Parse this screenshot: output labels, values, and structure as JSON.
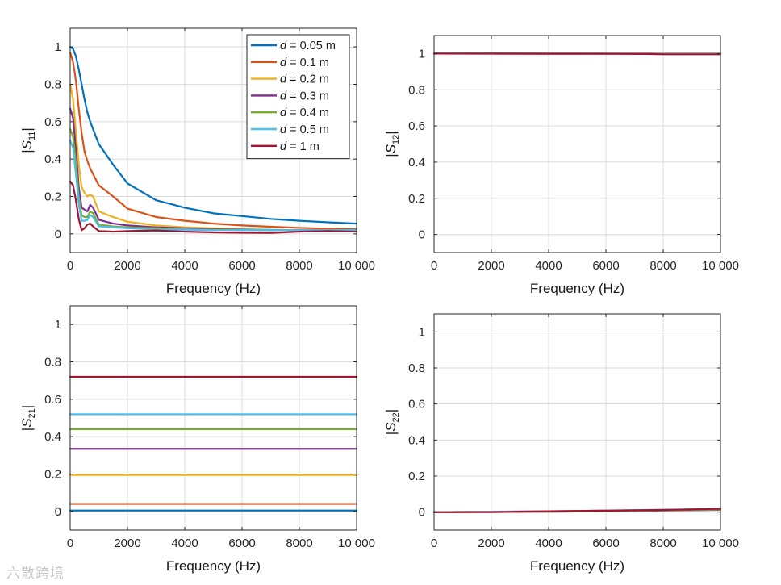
{
  "watermark": "六散跨境",
  "chart_data": [
    {
      "id": "s11",
      "type": "line",
      "ylabel_main": "S",
      "ylabel_sub": "11",
      "xlabel": "Frequency (Hz)",
      "xlim": [
        0,
        10000
      ],
      "ylim": [
        -0.1,
        1.1
      ],
      "xticks": [
        0,
        2000,
        4000,
        6000,
        8000,
        10000
      ],
      "xtick_labels": [
        "0",
        "2000",
        "4000",
        "6000",
        "8000",
        "10 000"
      ],
      "yticks": [
        0,
        0.2,
        0.4,
        0.6,
        0.8,
        1
      ],
      "ytick_labels": [
        "0",
        "0.2",
        "0.4",
        "0.6",
        "0.8",
        "1"
      ],
      "grid": true,
      "legend": "top-right",
      "series": [
        {
          "name": "d = 0.05 m",
          "var": "d",
          "rest": " = 0.05 m",
          "color": "#0072BD",
          "x": [
            0,
            100,
            200,
            300,
            400,
            500,
            600,
            700,
            800,
            1000,
            1500,
            2000,
            3000,
            4000,
            5000,
            6000,
            7000,
            8000,
            9000,
            10000
          ],
          "y": [
            1.0,
            0.99,
            0.95,
            0.88,
            0.8,
            0.72,
            0.65,
            0.6,
            0.56,
            0.48,
            0.37,
            0.27,
            0.18,
            0.14,
            0.11,
            0.095,
            0.08,
            0.07,
            0.062,
            0.055
          ]
        },
        {
          "name": "d = 0.1 m",
          "var": "d",
          "rest": " = 0.1 m",
          "color": "#D95319",
          "x": [
            0,
            100,
            200,
            300,
            400,
            500,
            600,
            700,
            800,
            1000,
            1500,
            2000,
            3000,
            4000,
            5000,
            6000,
            7000,
            8000,
            9000,
            10000
          ],
          "y": [
            0.97,
            0.92,
            0.82,
            0.67,
            0.54,
            0.44,
            0.39,
            0.35,
            0.32,
            0.26,
            0.2,
            0.135,
            0.09,
            0.07,
            0.055,
            0.045,
            0.038,
            0.032,
            0.028,
            0.025
          ]
        },
        {
          "name": "d = 0.2 m",
          "var": "d",
          "rest": " = 0.2 m",
          "color": "#EDB120",
          "x": [
            0,
            100,
            200,
            300,
            400,
            500,
            600,
            700,
            800,
            1000,
            1500,
            2000,
            3000,
            4000,
            5000,
            6000,
            7000,
            8000,
            9000,
            10000
          ],
          "y": [
            0.8,
            0.72,
            0.55,
            0.37,
            0.25,
            0.22,
            0.2,
            0.21,
            0.2,
            0.12,
            0.09,
            0.065,
            0.045,
            0.035,
            0.03,
            0.025,
            0.022,
            0.02,
            0.02,
            0.02
          ]
        },
        {
          "name": "d = 0.3 m",
          "var": "d",
          "rest": " = 0.3 m",
          "color": "#7E2F8E",
          "x": [
            0,
            100,
            200,
            300,
            400,
            500,
            600,
            700,
            800,
            1000,
            1500,
            2000,
            3000,
            4000,
            5000,
            6000,
            7000,
            8000,
            9000,
            10000
          ],
          "y": [
            0.67,
            0.62,
            0.45,
            0.25,
            0.14,
            0.13,
            0.12,
            0.155,
            0.14,
            0.075,
            0.055,
            0.045,
            0.035,
            0.03,
            0.025,
            0.022,
            0.02,
            0.02,
            0.02,
            0.02
          ]
        },
        {
          "name": "d = 0.4 m",
          "var": "d",
          "rest": " = 0.4 m",
          "color": "#77AC30",
          "x": [
            0,
            100,
            200,
            300,
            400,
            500,
            600,
            700,
            800,
            1000,
            1500,
            2000,
            3000,
            4000,
            5000,
            6000,
            7000,
            8000,
            9000,
            10000
          ],
          "y": [
            0.56,
            0.52,
            0.38,
            0.2,
            0.1,
            0.09,
            0.09,
            0.12,
            0.11,
            0.05,
            0.04,
            0.035,
            0.03,
            0.025,
            0.022,
            0.02,
            0.02,
            0.02,
            0.02,
            0.02
          ]
        },
        {
          "name": "d = 0.5 m",
          "var": "d",
          "rest": " = 0.5 m",
          "color": "#4DBEEE",
          "x": [
            0,
            100,
            200,
            300,
            400,
            500,
            600,
            700,
            800,
            1000,
            1500,
            2000,
            3000,
            4000,
            5000,
            6000,
            7000,
            8000,
            9000,
            10000
          ],
          "y": [
            0.5,
            0.46,
            0.32,
            0.16,
            0.07,
            0.07,
            0.075,
            0.1,
            0.09,
            0.04,
            0.035,
            0.03,
            0.025,
            0.022,
            0.02,
            0.02,
            0.02,
            0.02,
            0.02,
            0.02
          ]
        },
        {
          "name": "d = 1 m",
          "var": "d",
          "rest": " = 1 m",
          "color": "#A2142F",
          "x": [
            0,
            100,
            200,
            300,
            400,
            500,
            600,
            700,
            800,
            1000,
            1500,
            2000,
            3000,
            4000,
            5000,
            6000,
            7000,
            8000,
            9000,
            10000
          ],
          "y": [
            0.28,
            0.26,
            0.18,
            0.08,
            0.02,
            0.03,
            0.05,
            0.055,
            0.04,
            0.015,
            0.012,
            0.015,
            0.018,
            0.012,
            0.008,
            0.006,
            0.005,
            0.012,
            0.015,
            0.012
          ]
        }
      ]
    },
    {
      "id": "s12",
      "type": "line",
      "ylabel_main": "S",
      "ylabel_sub": "12",
      "xlabel": "Frequency (Hz)",
      "xlim": [
        0,
        10000
      ],
      "ylim": [
        -0.1,
        1.1
      ],
      "xticks": [
        0,
        2000,
        4000,
        6000,
        8000,
        10000
      ],
      "xtick_labels": [
        "0",
        "2000",
        "4000",
        "6000",
        "8000",
        "10 000"
      ],
      "yticks": [
        0,
        0.2,
        0.4,
        0.6,
        0.8,
        1
      ],
      "ytick_labels": [
        "0",
        "0.2",
        "0.4",
        "0.6",
        "0.8",
        "1"
      ],
      "grid": true,
      "series": [
        {
          "name": "d = 0.05 m",
          "color": "#0072BD",
          "x": [
            0,
            10000
          ],
          "y": [
            1.0,
            1.0
          ]
        },
        {
          "name": "d = 0.1 m",
          "color": "#D95319",
          "x": [
            0,
            10000
          ],
          "y": [
            1.0,
            1.0
          ]
        },
        {
          "name": "d = 0.2 m",
          "color": "#EDB120",
          "x": [
            0,
            10000
          ],
          "y": [
            1.0,
            1.0
          ]
        },
        {
          "name": "d = 0.3 m",
          "color": "#7E2F8E",
          "x": [
            0,
            10000
          ],
          "y": [
            1.0,
            0.999
          ]
        },
        {
          "name": "d = 0.4 m",
          "color": "#77AC30",
          "x": [
            0,
            10000
          ],
          "y": [
            1.0,
            0.999
          ]
        },
        {
          "name": "d = 0.5 m",
          "color": "#4DBEEE",
          "x": [
            0,
            10000
          ],
          "y": [
            1.0,
            0.998
          ]
        },
        {
          "name": "d = 1 m",
          "color": "#A2142F",
          "x": [
            0,
            2000,
            4000,
            6000,
            7500,
            8000,
            10000
          ],
          "y": [
            1.0,
            1.0,
            0.999,
            0.999,
            0.998,
            0.996,
            0.996
          ]
        }
      ]
    },
    {
      "id": "s21",
      "type": "line",
      "ylabel_main": "S",
      "ylabel_sub": "21",
      "xlabel": "Frequency (Hz)",
      "xlim": [
        0,
        10000
      ],
      "ylim": [
        -0.1,
        1.1
      ],
      "xticks": [
        0,
        2000,
        4000,
        6000,
        8000,
        10000
      ],
      "xtick_labels": [
        "0",
        "2000",
        "4000",
        "6000",
        "8000",
        "10 000"
      ],
      "yticks": [
        0,
        0.2,
        0.4,
        0.6,
        0.8,
        1
      ],
      "ytick_labels": [
        "0",
        "0.2",
        "0.4",
        "0.6",
        "0.8",
        "1"
      ],
      "grid": true,
      "series": [
        {
          "name": "d = 0.05 m",
          "color": "#0072BD",
          "x": [
            0,
            10000
          ],
          "y": [
            0.005,
            0.005
          ]
        },
        {
          "name": "d = 0.1 m",
          "color": "#D95319",
          "x": [
            0,
            10000
          ],
          "y": [
            0.04,
            0.04
          ]
        },
        {
          "name": "d = 0.2 m",
          "color": "#EDB120",
          "x": [
            0,
            10000
          ],
          "y": [
            0.195,
            0.195
          ]
        },
        {
          "name": "d = 0.3 m",
          "color": "#7E2F8E",
          "x": [
            0,
            10000
          ],
          "y": [
            0.335,
            0.335
          ]
        },
        {
          "name": "d = 0.4 m",
          "color": "#77AC30",
          "x": [
            0,
            10000
          ],
          "y": [
            0.44,
            0.44
          ]
        },
        {
          "name": "d = 0.5 m",
          "color": "#4DBEEE",
          "x": [
            0,
            10000
          ],
          "y": [
            0.52,
            0.52
          ]
        },
        {
          "name": "d = 1 m",
          "color": "#A2142F",
          "x": [
            0,
            10000
          ],
          "y": [
            0.72,
            0.72
          ]
        }
      ]
    },
    {
      "id": "s22",
      "type": "line",
      "ylabel_main": "S",
      "ylabel_sub": "22",
      "xlabel": "Frequency (Hz)",
      "xlim": [
        0,
        10000
      ],
      "ylim": [
        -0.1,
        1.1
      ],
      "xticks": [
        0,
        2000,
        4000,
        6000,
        8000,
        10000
      ],
      "xtick_labels": [
        "0",
        "2000",
        "4000",
        "6000",
        "8000",
        "10 000"
      ],
      "yticks": [
        0,
        0.2,
        0.4,
        0.6,
        0.8,
        1
      ],
      "ytick_labels": [
        "0",
        "0.2",
        "0.4",
        "0.6",
        "0.8",
        "1"
      ],
      "grid": true,
      "series": [
        {
          "name": "d = 0.05 m",
          "color": "#0072BD",
          "x": [
            0,
            4000,
            10000
          ],
          "y": [
            0.0,
            0.002,
            0.012
          ]
        },
        {
          "name": "d = 0.1 m",
          "color": "#D95319",
          "x": [
            0,
            4000,
            10000
          ],
          "y": [
            0.0,
            0.003,
            0.013
          ]
        },
        {
          "name": "d = 0.2 m",
          "color": "#EDB120",
          "x": [
            0,
            4000,
            10000
          ],
          "y": [
            0.0,
            0.003,
            0.014
          ]
        },
        {
          "name": "d = 0.3 m",
          "color": "#7E2F8E",
          "x": [
            0,
            4000,
            10000
          ],
          "y": [
            0.0,
            0.004,
            0.015
          ]
        },
        {
          "name": "d = 0.4 m",
          "color": "#77AC30",
          "x": [
            0,
            4000,
            10000
          ],
          "y": [
            0.0,
            0.004,
            0.016
          ]
        },
        {
          "name": "d = 0.5 m",
          "color": "#4DBEEE",
          "x": [
            0,
            4000,
            10000
          ],
          "y": [
            0.0,
            0.005,
            0.017
          ]
        },
        {
          "name": "d = 1 m",
          "color": "#A2142F",
          "x": [
            0,
            2000,
            4000,
            6000,
            8000,
            10000
          ],
          "y": [
            0.0,
            0.0,
            0.005,
            0.008,
            0.012,
            0.018
          ]
        }
      ]
    }
  ]
}
